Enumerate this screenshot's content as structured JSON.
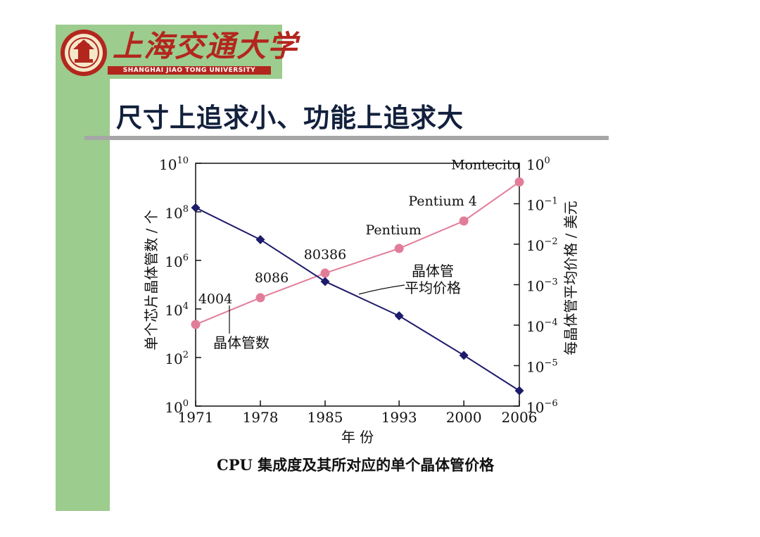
{
  "logo": {
    "name_cn": "上海交通大学",
    "name_en": "SHANGHAI JIAO TONG UNIVERSITY",
    "emblem_icon": "sjtu-emblem-icon",
    "band_color": "#9ccc8e",
    "brand_color": "#b3261e"
  },
  "slide": {
    "title": "尺寸上追求小、功能上追求大",
    "caption": "CPU 集成度及其所对应的单个晶体管价格"
  },
  "chart_data": {
    "type": "line",
    "title": "",
    "xlabel": "年 份",
    "ylabel_left": "单个芯片晶体管数 / 个",
    "ylabel_right": "每晶体管平均价格 / 美元",
    "x": [
      1971,
      1978,
      1985,
      1993,
      2000,
      2006
    ],
    "x_tick_labels": [
      "1971",
      "1978",
      "1985",
      "1993",
      "2000",
      "2006"
    ],
    "left_axis": {
      "scale": "log",
      "ylim": [
        1,
        10000000000
      ],
      "ticks": [
        {
          "base": "10",
          "exp": "10",
          "value": 10000000000
        },
        {
          "base": "10",
          "exp": "8",
          "value": 100000000
        },
        {
          "base": "10",
          "exp": "6",
          "value": 1000000
        },
        {
          "base": "10",
          "exp": "4",
          "value": 10000
        },
        {
          "base": "10",
          "exp": "2",
          "value": 100
        },
        {
          "base": "10",
          "exp": "0",
          "value": 1
        }
      ]
    },
    "right_axis": {
      "scale": "log",
      "ylim": [
        1e-06,
        1
      ],
      "ticks": [
        {
          "base": "10",
          "exp": "0",
          "value": 1
        },
        {
          "base": "10",
          "exp": "−1",
          "value": 0.1
        },
        {
          "base": "10",
          "exp": "−2",
          "value": 0.01
        },
        {
          "base": "10",
          "exp": "−3",
          "value": 0.001
        },
        {
          "base": "10",
          "exp": "−4",
          "value": 0.0001
        },
        {
          "base": "10",
          "exp": "−5",
          "value": 1e-05
        },
        {
          "base": "10",
          "exp": "−6",
          "value": 1e-06
        }
      ]
    },
    "series": [
      {
        "name": "晶体管数",
        "axis": "left",
        "color": "#e27d99",
        "marker": "circle",
        "values": [
          2300,
          29000,
          300000,
          3100000,
          42000000,
          1700000000
        ],
        "point_labels": [
          "4004",
          "8086",
          "80386",
          "Pentium",
          "Pentium 4",
          "Montecito"
        ]
      },
      {
        "name": "晶体管平均价格",
        "name_lines": [
          "晶体管",
          "平均价格"
        ],
        "axis": "right",
        "color": "#1d1b6b",
        "marker": "diamond",
        "values": [
          0.08,
          0.013,
          0.0012,
          0.00017,
          1.8e-05,
          2.4e-06
        ]
      }
    ],
    "grid": false,
    "legend": "none"
  }
}
